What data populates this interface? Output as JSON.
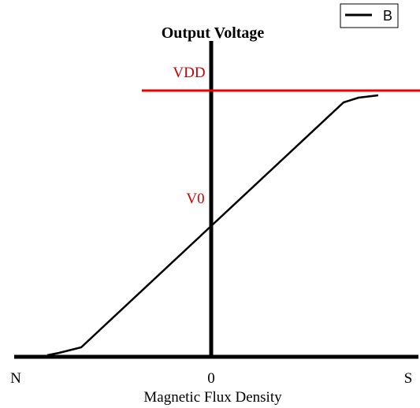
{
  "title": "Output Voltage",
  "legend": {
    "label": "B"
  },
  "levels": {
    "high": "VDD",
    "mid": "V0"
  },
  "x_axis": {
    "left": "N",
    "center": "0",
    "right": "S",
    "label": "Magnetic Flux Density"
  }
}
